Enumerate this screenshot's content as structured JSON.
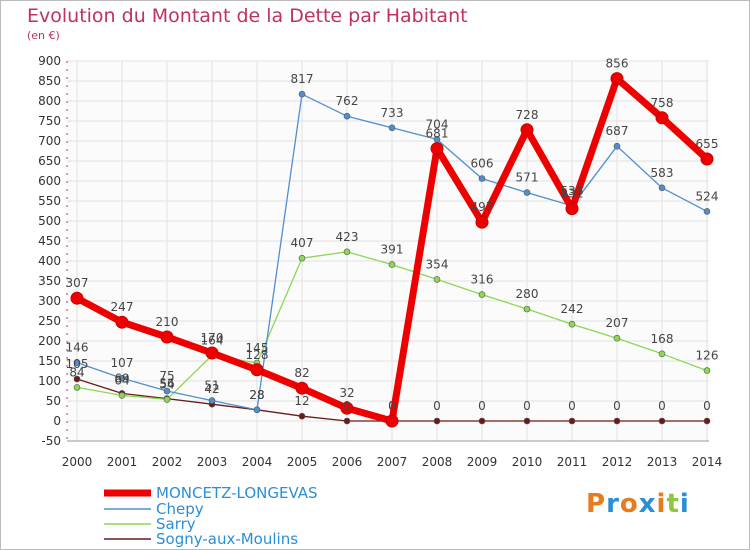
{
  "chart_data": {
    "type": "line",
    "title": "Evolution du Montant de la Dette par Habitant",
    "subtitle": "(en €)",
    "ylim": [
      -50,
      900
    ],
    "yticks": [
      -50,
      0,
      50,
      100,
      150,
      200,
      250,
      300,
      350,
      400,
      450,
      500,
      550,
      600,
      650,
      700,
      750,
      800,
      850,
      900
    ],
    "x": [
      "2000",
      "2001",
      "2002",
      "2003",
      "2004",
      "2005",
      "2006",
      "2007",
      "2008",
      "2009",
      "2010",
      "2011",
      "2012",
      "2013",
      "2014"
    ],
    "grid": true,
    "legend_position": "bottom-left",
    "series": [
      {
        "name": "MONCETZ-LONGEVAS",
        "color": "#ee0000",
        "values": [
          307,
          247,
          210,
          170,
          128,
          82,
          32,
          0,
          681,
          497,
          728,
          531,
          856,
          758,
          655
        ]
      },
      {
        "name": "Chepy",
        "color": "#4f8fcf",
        "values": [
          146,
          107,
          75,
          51,
          28,
          817,
          762,
          733,
          704,
          606,
          571,
          538,
          687,
          583,
          524
        ]
      },
      {
        "name": "Sarry",
        "color": "#8ed653",
        "values": [
          84,
          64,
          54,
          164,
          145,
          407,
          423,
          391,
          354,
          316,
          280,
          242,
          207,
          168,
          126
        ]
      },
      {
        "name": "Sogny-aux-Moulins",
        "color": "#6b1a1a",
        "values": [
          105,
          69,
          56,
          42,
          28,
          12,
          0,
          0,
          0,
          0,
          0,
          0,
          0,
          0,
          0
        ]
      }
    ]
  },
  "logo": {
    "text": "Proxiti",
    "colors": [
      "#e87b1e",
      "#2a8fd6",
      "#e87b1e",
      "#2a8fd6",
      "#e87b1e",
      "#8ec63f",
      "#2a8fd6"
    ]
  }
}
